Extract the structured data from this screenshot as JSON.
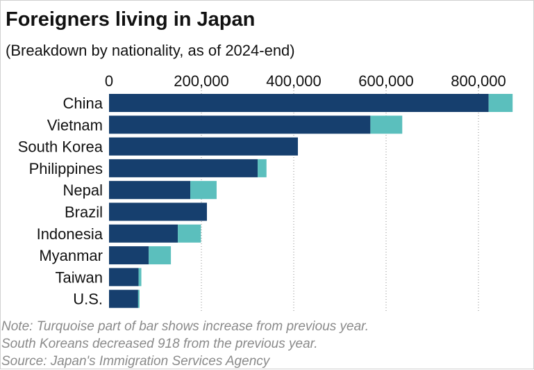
{
  "title": "Foreigners living in Japan",
  "subtitle": "(Breakdown by nationality, as of 2024-end)",
  "notes": [
    "Note: Turquoise part of bar shows increase from previous year.",
    "South Koreans decreased 918 from the previous year.",
    "Source: Japan's Immigration Services Agency"
  ],
  "colors": {
    "base": "#163f6e",
    "increase": "#5bbfbd",
    "grid": "#888888"
  },
  "chart_data": {
    "type": "bar",
    "orientation": "horizontal",
    "stacked": true,
    "title": "Foreigners living in Japan",
    "subtitle": "(Breakdown by nationality, as of 2024-end)",
    "xlabel": "",
    "ylabel": "",
    "xlim": [
      0,
      880000
    ],
    "ticks": [
      0,
      200000,
      400000,
      600000,
      800000
    ],
    "tick_labels": [
      "0",
      "200,000",
      "400,000",
      "600,000",
      "800,000"
    ],
    "grid": true,
    "categories": [
      "China",
      "Vietnam",
      "South Korea",
      "Philippines",
      "Nepal",
      "Brazil",
      "Indonesia",
      "Myanmar",
      "Taiwan",
      "U.S."
    ],
    "series": [
      {
        "values": [
          822000,
          566000,
          409000,
          322000,
          176000,
          212000,
          149000,
          86000,
          64000,
          63000
        ]
      },
      {
        "values": [
          52000,
          69000,
          0,
          19000,
          57000,
          0,
          50000,
          48000,
          6000,
          3000
        ]
      }
    ],
    "totals": [
      874000,
      635000,
      409000,
      341000,
      233000,
      212000,
      199000,
      134000,
      70000,
      66000
    ]
  }
}
